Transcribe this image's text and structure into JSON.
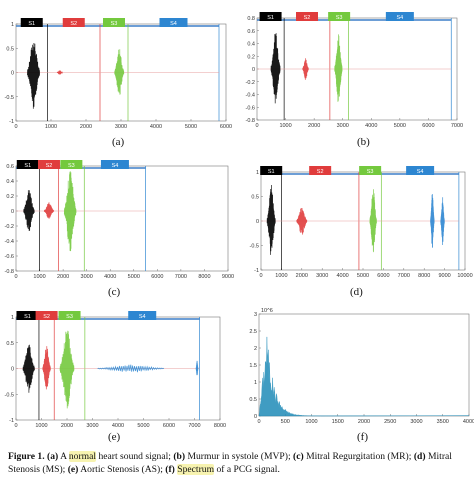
{
  "segment_labels": [
    "S1",
    "S2",
    "S3",
    "S4"
  ],
  "panel_labels": [
    "(a)",
    "(b)",
    "(c)",
    "(d)",
    "(e)",
    "(f)"
  ],
  "colors": {
    "S1": "#000000",
    "S2": "#e03c3c",
    "S3": "#74c93e",
    "S4": "#2d86d1",
    "spectrum": "#1f8bb8",
    "blue_line": "#3d7fc9"
  },
  "caption": {
    "fig": "Figure 1.",
    "p1": "(a)",
    "t1": " A ",
    "h1": "normal",
    "t2": " heart sound signal; ",
    "p2": "(b)",
    "t3": " Murmur in systole (MVP); ",
    "p3": "(c)",
    "t4": " Mitral Regurgitation (MR);",
    "p4": "(d)",
    "t5": " Mitral Stenosis (MS); ",
    "p5": "(e)",
    "t6": " Aortic Stenosis (AS); ",
    "p6": "(f)",
    "t7": " ",
    "h2": "Spectrum",
    "t8": " of a PCG signal."
  },
  "chart_data": [
    {
      "id": "a",
      "type": "line",
      "xlim": [
        0,
        6000
      ],
      "ylim": [
        -1,
        1
      ],
      "xticks": [
        "0",
        "1000",
        "2000",
        "3000",
        "4000",
        "5000",
        "6000"
      ],
      "yticks": [
        "1",
        "0.5",
        "0",
        "-0.5",
        "-1"
      ],
      "segments": [
        {
          "label": "S1",
          "start": 0,
          "end": 900
        },
        {
          "label": "S2",
          "start": 900,
          "end": 2400
        },
        {
          "label": "S3",
          "start": 2400,
          "end": 3200
        },
        {
          "label": "S4",
          "start": 3200,
          "end": 5800
        }
      ],
      "bursts": [
        {
          "center": 500,
          "width": 350,
          "amp": 0.75,
          "color": "S1"
        },
        {
          "center": 1250,
          "width": 150,
          "amp": 0.05,
          "color": "S2"
        },
        {
          "center": 2950,
          "width": 260,
          "amp": 0.5,
          "color": "S3"
        }
      ]
    },
    {
      "id": "b",
      "type": "line",
      "xlim": [
        0,
        7000
      ],
      "ylim": [
        -0.8,
        0.8
      ],
      "xticks": [
        "0",
        "1000",
        "2000",
        "3000",
        "4000",
        "5000",
        "6000",
        "7000"
      ],
      "yticks": [
        "0.8",
        "0.6",
        "0.4",
        "0.2",
        "0",
        "-0.2",
        "-0.4",
        "-0.6",
        "-0.8"
      ],
      "segments": [
        {
          "label": "S1",
          "start": 0,
          "end": 950
        },
        {
          "label": "S2",
          "start": 950,
          "end": 2550
        },
        {
          "label": "S3",
          "start": 2550,
          "end": 3200
        },
        {
          "label": "S4",
          "start": 3200,
          "end": 6800
        }
      ],
      "bursts": [
        {
          "center": 650,
          "width": 320,
          "amp": 0.6,
          "color": "S1"
        },
        {
          "center": 1700,
          "width": 200,
          "amp": 0.18,
          "color": "S2"
        },
        {
          "center": 2850,
          "width": 260,
          "amp": 0.55,
          "color": "S3"
        }
      ]
    },
    {
      "id": "c",
      "type": "line",
      "xlim": [
        0,
        9000
      ],
      "ylim": [
        -0.8,
        0.6
      ],
      "xticks": [
        "0",
        "1000",
        "2000",
        "3000",
        "4000",
        "5000",
        "6000",
        "7000",
        "8000",
        "9000"
      ],
      "yticks": [
        "0.6",
        "0.4",
        "0.2",
        "0",
        "-0.2",
        "-0.4",
        "-0.6",
        "-0.8"
      ],
      "segments": [
        {
          "label": "S1",
          "start": 0,
          "end": 1000
        },
        {
          "label": "S2",
          "start": 1000,
          "end": 1800
        },
        {
          "label": "S3",
          "start": 1800,
          "end": 2900
        },
        {
          "label": "S4",
          "start": 2900,
          "end": 5500
        }
      ],
      "bursts": [
        {
          "center": 550,
          "width": 450,
          "amp": 0.3,
          "color": "S1"
        },
        {
          "center": 1400,
          "width": 400,
          "amp": 0.12,
          "color": "S2"
        },
        {
          "center": 2300,
          "width": 500,
          "amp": 0.55,
          "color": "S3"
        }
      ]
    },
    {
      "id": "d",
      "type": "line",
      "xlim": [
        0,
        10000
      ],
      "ylim": [
        -1,
        1
      ],
      "xticks": [
        "0",
        "1000",
        "2000",
        "3000",
        "4000",
        "5000",
        "6000",
        "7000",
        "8000",
        "9000",
        "10000"
      ],
      "yticks": [
        "1",
        "0.5",
        "0",
        "-0.5",
        "-1"
      ],
      "segments": [
        {
          "label": "S1",
          "start": 0,
          "end": 1000
        },
        {
          "label": "S2",
          "start": 1000,
          "end": 4800
        },
        {
          "label": "S3",
          "start": 4800,
          "end": 5900
        },
        {
          "label": "S4",
          "start": 5900,
          "end": 9700
        }
      ],
      "bursts": [
        {
          "center": 500,
          "width": 400,
          "amp": 0.75,
          "color": "S1"
        },
        {
          "center": 2000,
          "width": 500,
          "amp": 0.3,
          "color": "S2"
        },
        {
          "center": 5500,
          "width": 320,
          "amp": 0.7,
          "color": "S3"
        },
        {
          "center": 8400,
          "width": 180,
          "amp": 0.6,
          "color": "S4"
        },
        {
          "center": 8900,
          "width": 180,
          "amp": 0.5,
          "color": "S4"
        }
      ]
    },
    {
      "id": "e",
      "type": "line",
      "xlim": [
        0,
        8000
      ],
      "ylim": [
        -1,
        1
      ],
      "xticks": [
        "0",
        "1000",
        "2000",
        "3000",
        "4000",
        "5000",
        "6000",
        "7000",
        "8000"
      ],
      "yticks": [
        "1",
        "0.5",
        "0",
        "-0.5",
        "-1"
      ],
      "segments": [
        {
          "label": "S1",
          "start": 0,
          "end": 900
        },
        {
          "label": "S2",
          "start": 900,
          "end": 1500
        },
        {
          "label": "S3",
          "start": 1500,
          "end": 2700
        },
        {
          "label": "S4",
          "start": 2700,
          "end": 7200
        }
      ],
      "bursts": [
        {
          "center": 500,
          "width": 450,
          "amp": 0.5,
          "color": "S1"
        },
        {
          "center": 1200,
          "width": 300,
          "amp": 0.45,
          "color": "S2"
        },
        {
          "center": 2000,
          "width": 550,
          "amp": 0.8,
          "color": "S3"
        },
        {
          "center": 4500,
          "width": 2600,
          "amp": 0.08,
          "color": "S4"
        },
        {
          "center": 7100,
          "width": 80,
          "amp": 0.15,
          "color": "S4"
        }
      ]
    },
    {
      "id": "f",
      "type": "area",
      "xlim": [
        0,
        4000
      ],
      "ylim": [
        0,
        3
      ],
      "yscale_label": "10^6",
      "xticks": [
        "0",
        "500",
        "1000",
        "1500",
        "2000",
        "2500",
        "3000",
        "3500",
        "4000"
      ],
      "yticks": [
        "3",
        "2.5",
        "2",
        "1.5",
        "1",
        "0.5",
        "0"
      ],
      "peak": {
        "x": 150,
        "y": 2.5
      }
    }
  ]
}
